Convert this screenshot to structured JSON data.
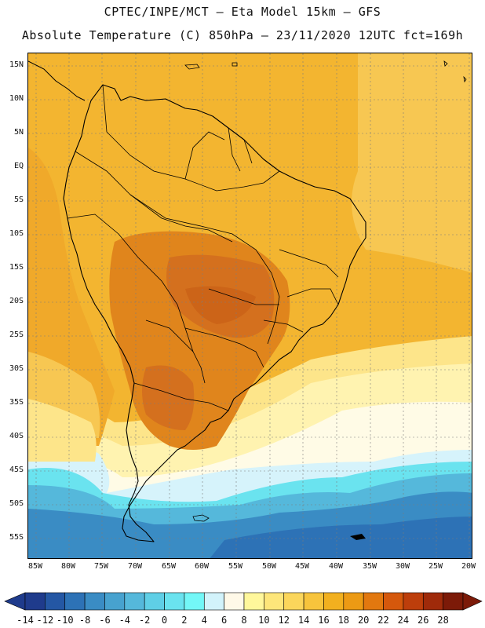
{
  "header": {
    "line1": "CPTEC/INPE/MCT –  Eta Model 15km – GFS",
    "line2": "Absolute Temperature (C) 850hPa – 23/11/2020 12UTC fct=169h"
  },
  "axes": {
    "lat_labels": [
      "15N",
      "10N",
      "5N",
      "EQ",
      "5S",
      "10S",
      "15S",
      "20S",
      "25S",
      "30S",
      "35S",
      "40S",
      "45S",
      "50S",
      "55S"
    ],
    "lon_labels": [
      "85W",
      "80W",
      "75W",
      "70W",
      "65W",
      "60W",
      "55W",
      "50W",
      "45W",
      "40W",
      "35W",
      "30W",
      "25W",
      "20W"
    ]
  },
  "colorbar": {
    "labels": [
      "-14",
      "-12",
      "-10",
      "-8",
      "-6",
      "-4",
      "-2",
      "0",
      "2",
      "4",
      "6",
      "8",
      "10",
      "12",
      "14",
      "16",
      "18",
      "20",
      "22",
      "24",
      "26",
      "28"
    ],
    "colors": [
      "#1f3b8c",
      "#2457a4",
      "#2d72b6",
      "#3a8cc4",
      "#47a2cf",
      "#55b8db",
      "#5fcfe6",
      "#6ae3ef",
      "#73f7f7",
      "#d2f3fb",
      "#fff9e8",
      "#fff79b",
      "#fde67a",
      "#fbd65b",
      "#f7c43c",
      "#f2b01f",
      "#ec9a14",
      "#e2780f",
      "#d5580c",
      "#bd3e0b",
      "#9f2a0a",
      "#7c1a08"
    ]
  },
  "legend_colors": {
    "water_cold": "#2f86c0",
    "water_mid": "#5fcde4",
    "pale": "#fffbe6",
    "yellow": "#fde686",
    "gold": "#f4bc3a",
    "orange": "#eea21c",
    "dark_orange": "#e0851c",
    "hot": "#d4701e",
    "coast": "#000000"
  }
}
